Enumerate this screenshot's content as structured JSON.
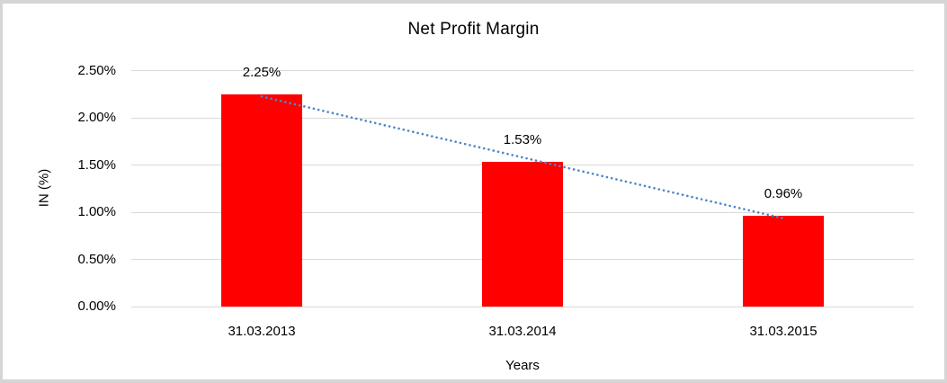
{
  "frame": {
    "background": "#ffffff",
    "border_color": "#d5d5d5"
  },
  "chart_data": {
    "type": "bar",
    "title": "Net Profit Margin",
    "xlabel": "Years",
    "ylabel": "IN (%)",
    "categories": [
      "31.03.2013",
      "31.03.2014",
      "31.03.2015"
    ],
    "values": [
      2.25,
      1.53,
      0.96
    ],
    "data_labels": [
      "2.25%",
      "1.53%",
      "0.96%"
    ],
    "yticks": [
      {
        "value": 0.0,
        "label": "0.00%"
      },
      {
        "value": 0.5,
        "label": "0.50%"
      },
      {
        "value": 1.0,
        "label": "1.00%"
      },
      {
        "value": 1.5,
        "label": "1.50%"
      },
      {
        "value": 2.0,
        "label": "2.00%"
      },
      {
        "value": 2.5,
        "label": "2.50%"
      }
    ],
    "ylim": [
      0,
      2.5
    ],
    "grid": "horizontal",
    "legend": "none",
    "bar_color": "#ff0000",
    "gridline_color": "#d9d9d9",
    "text_color": "#000000",
    "trendline": {
      "type": "linear",
      "style": "dotted",
      "color": "#4e86c8",
      "start_value": 2.225,
      "end_value": 0.935
    }
  }
}
